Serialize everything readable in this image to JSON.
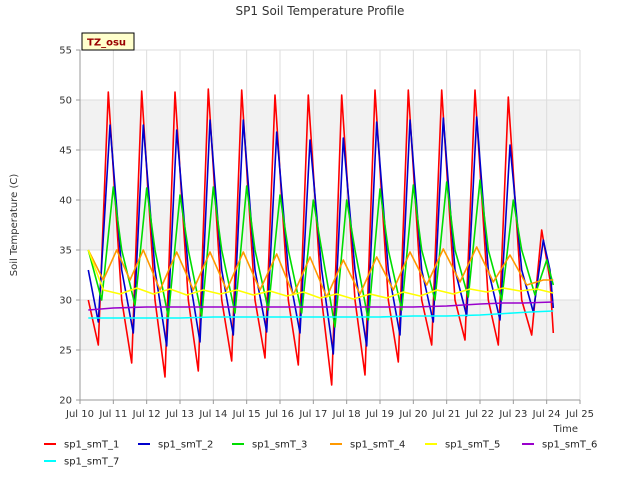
{
  "chart_data": {
    "type": "line",
    "title": "SP1 Soil Temperature Profile",
    "xlabel": "Time",
    "ylabel": "Soil Temperature (C)",
    "badge": "TZ_osu",
    "xlim": [
      10,
      25
    ],
    "ylim": [
      20,
      55
    ],
    "x_ticks": [
      10,
      11,
      12,
      13,
      14,
      15,
      16,
      17,
      18,
      19,
      20,
      21,
      22,
      23,
      24,
      25
    ],
    "x_tick_labels": [
      "Jul 10",
      "Jul 11",
      "Jul 12",
      "Jul 13",
      "Jul 14",
      "Jul 15",
      "Jul 16",
      "Jul 17",
      "Jul 18",
      "Jul 19",
      "Jul 20",
      "Jul 21",
      "Jul 22",
      "Jul 23",
      "Jul 24",
      "Jul 25"
    ],
    "y_ticks": [
      20,
      25,
      30,
      35,
      40,
      45,
      50,
      55
    ],
    "y_tick_labels": [
      "20",
      "25",
      "30",
      "35",
      "40",
      "45",
      "50",
      "55"
    ],
    "grid": true,
    "legend_position": "bottom",
    "series": [
      {
        "name": "sp1_smT_1",
        "color": "#ff0000",
        "x": [
          10.25,
          10.55,
          10.85,
          11.25,
          11.55,
          11.85,
          12.25,
          12.55,
          12.85,
          13.25,
          13.55,
          13.85,
          14.25,
          14.55,
          14.85,
          15.25,
          15.55,
          15.85,
          16.25,
          16.55,
          16.85,
          17.25,
          17.55,
          17.85,
          18.25,
          18.55,
          18.85,
          19.25,
          19.55,
          19.85,
          20.25,
          20.55,
          20.85,
          21.25,
          21.55,
          21.85,
          22.25,
          22.55,
          22.85,
          23.25,
          23.55,
          23.85,
          24.1,
          24.2
        ],
        "y": [
          30,
          25.5,
          50.8,
          30,
          23.7,
          50.9,
          30,
          22.3,
          50.8,
          30,
          22.9,
          51.1,
          30,
          23.9,
          51,
          30,
          24.2,
          50.5,
          30,
          23.5,
          50.5,
          30,
          21.5,
          50.5,
          30,
          22.5,
          51,
          30,
          23.8,
          51,
          30,
          25.5,
          51,
          30,
          26,
          51,
          30,
          25.5,
          50.3,
          30,
          26.5,
          37,
          32,
          26.7
        ]
      },
      {
        "name": "sp1_smT_2",
        "color": "#0000cc",
        "x": [
          10.25,
          10.55,
          10.9,
          11.25,
          11.6,
          11.9,
          12.25,
          12.6,
          12.9,
          13.25,
          13.6,
          13.9,
          14.25,
          14.6,
          14.9,
          15.25,
          15.6,
          15.9,
          16.25,
          16.6,
          16.9,
          17.25,
          17.6,
          17.9,
          18.25,
          18.6,
          18.9,
          19.25,
          19.6,
          19.9,
          20.25,
          20.6,
          20.9,
          21.25,
          21.6,
          21.9,
          22.25,
          22.6,
          22.9,
          23.25,
          23.6,
          23.9,
          24.1,
          24.2
        ],
        "y": [
          33,
          27.8,
          47.5,
          33,
          26.7,
          47.5,
          33,
          25.4,
          47,
          33,
          25.8,
          48,
          33,
          26.5,
          48,
          33,
          26.8,
          46.8,
          33,
          26.7,
          46,
          33,
          24.6,
          46.2,
          33,
          25.4,
          47.8,
          33,
          26.5,
          48,
          33,
          27.8,
          48.2,
          33,
          28.4,
          48.3,
          33,
          28,
          45.5,
          33,
          28.8,
          36,
          33,
          29.2
        ]
      },
      {
        "name": "sp1_smT_3",
        "color": "#00dd00",
        "x": [
          10.25,
          10.65,
          11.0,
          11.25,
          11.65,
          12.0,
          12.25,
          12.65,
          13.0,
          13.25,
          13.65,
          14.0,
          14.25,
          14.65,
          15.0,
          15.25,
          15.65,
          16.0,
          16.25,
          16.65,
          17.0,
          17.25,
          17.65,
          18.0,
          18.25,
          18.65,
          19.0,
          19.25,
          19.65,
          20.0,
          20.25,
          20.65,
          21.0,
          21.25,
          21.65,
          22.0,
          22.25,
          22.65,
          23.0,
          23.25,
          23.65,
          24.0,
          24.2
        ],
        "y": [
          35,
          30,
          41.3,
          35,
          29.5,
          41.2,
          35,
          28.3,
          40.5,
          35,
          28.4,
          41.3,
          35,
          28.7,
          41.4,
          35,
          29,
          40.5,
          35,
          28.7,
          40,
          35,
          27.3,
          40,
          35,
          28,
          41.1,
          35,
          29,
          41.5,
          35,
          30,
          41.8,
          35,
          30.3,
          42,
          35,
          30,
          40,
          35,
          30.5,
          34,
          31.5
        ]
      },
      {
        "name": "sp1_smT_4",
        "color": "#ff9900",
        "x": [
          10.25,
          10.7,
          11.1,
          11.5,
          11.9,
          12.4,
          12.9,
          13.4,
          13.9,
          14.4,
          14.9,
          15.4,
          15.9,
          16.4,
          16.9,
          17.4,
          17.9,
          18.4,
          18.9,
          19.4,
          19.9,
          20.4,
          20.9,
          21.4,
          21.9,
          22.4,
          22.9,
          23.4,
          23.9,
          24.2
        ],
        "y": [
          35,
          32,
          35,
          32,
          35,
          31,
          34.8,
          31,
          34.8,
          31,
          34.8,
          31,
          34.6,
          30.5,
          34.3,
          30.3,
          34,
          30.6,
          34.3,
          31,
          34.8,
          31.5,
          35.1,
          31.8,
          35.3,
          31.8,
          34.5,
          31.5,
          32,
          32
        ]
      },
      {
        "name": "sp1_smT_5",
        "color": "#ffff00",
        "x": [
          10.25,
          10.7,
          11.2,
          11.7,
          12.2,
          12.7,
          13.2,
          13.7,
          14.2,
          14.7,
          15.2,
          15.7,
          16.2,
          16.7,
          17.2,
          17.7,
          18.2,
          18.7,
          19.2,
          19.7,
          20.2,
          20.7,
          21.2,
          21.7,
          22.2,
          22.7,
          23.2,
          23.7,
          24.2
        ],
        "y": [
          35,
          31,
          30.6,
          31.2,
          30.6,
          31.1,
          30.5,
          31,
          30.6,
          31,
          30.5,
          30.9,
          30.4,
          30.8,
          30.2,
          30.6,
          30.1,
          30.6,
          30.2,
          30.8,
          30.4,
          31,
          30.6,
          31.1,
          30.8,
          31.2,
          30.9,
          31.1,
          30.7
        ]
      },
      {
        "name": "sp1_smT_6",
        "color": "#9900cc",
        "x": [
          10.25,
          11.0,
          12.0,
          13.0,
          14.0,
          15.0,
          16.0,
          17.0,
          18.0,
          19.0,
          20.0,
          21.0,
          22.0,
          22.7,
          23.3,
          24.2
        ],
        "y": [
          29,
          29.2,
          29.3,
          29.3,
          29.3,
          29.3,
          29.3,
          29.3,
          29.3,
          29.3,
          29.3,
          29.4,
          29.6,
          29.7,
          29.7,
          29.8
        ]
      },
      {
        "name": "sp1_smT_7",
        "color": "#00ffff",
        "x": [
          10.25,
          11.0,
          12.0,
          13.0,
          14.0,
          15.0,
          16.0,
          17.0,
          18.0,
          19.0,
          20.0,
          21.0,
          22.0,
          22.5,
          23.0,
          23.5,
          24.2
        ],
        "y": [
          28.2,
          28.2,
          28.2,
          28.2,
          28.3,
          28.3,
          28.3,
          28.3,
          28.3,
          28.3,
          28.4,
          28.4,
          28.5,
          28.6,
          28.7,
          28.8,
          28.9
        ]
      }
    ]
  }
}
